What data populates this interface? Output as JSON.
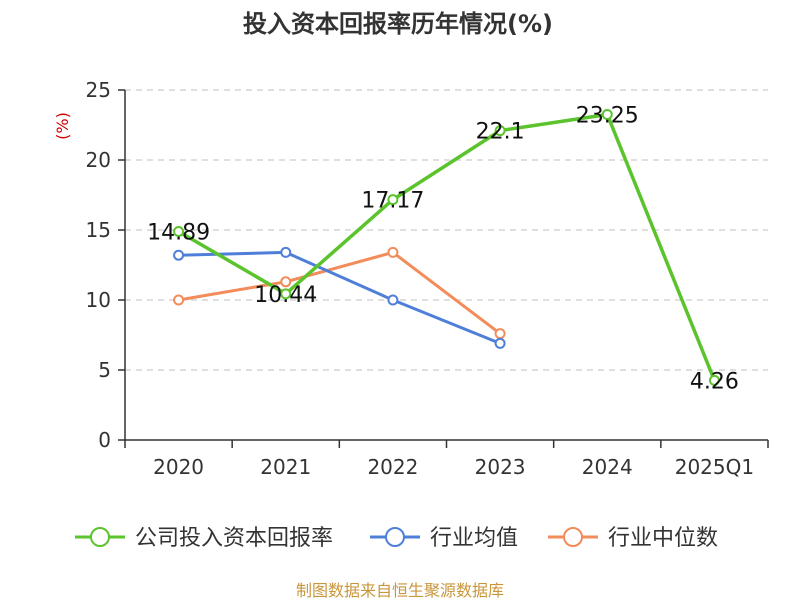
{
  "chart_data": {
    "type": "line",
    "title": "投入资本回报率历年情况(%)",
    "ylabel": "(%)",
    "xlabel": "",
    "categories": [
      "2020",
      "2021",
      "2022",
      "2023",
      "2024",
      "2025Q1"
    ],
    "ylim": [
      0,
      25
    ],
    "yticks": [
      0,
      5,
      10,
      15,
      20,
      25
    ],
    "grid": true,
    "legend_position": "bottom",
    "series": [
      {
        "name": "公司投入资本回报率",
        "color": "#5bc42c",
        "values": [
          14.89,
          10.44,
          17.17,
          22.1,
          23.25,
          4.26
        ],
        "labels": [
          "14.89",
          "10.44",
          "17.17",
          "22.1",
          "23.25",
          "4.26"
        ]
      },
      {
        "name": "行业均值",
        "color": "#4f7fd8",
        "values": [
          13.2,
          13.4,
          10.0,
          6.9,
          null,
          null
        ]
      },
      {
        "name": "行业中位数",
        "color": "#f28c5a",
        "values": [
          10.0,
          11.3,
          13.4,
          7.6,
          null,
          null
        ]
      }
    ]
  },
  "source_text": "制图数据来自恒生聚源数据库",
  "colors": {
    "axis": "#333333",
    "grid": "#cccccc",
    "ylabel": "#cc0000",
    "source": "#c8963c"
  }
}
